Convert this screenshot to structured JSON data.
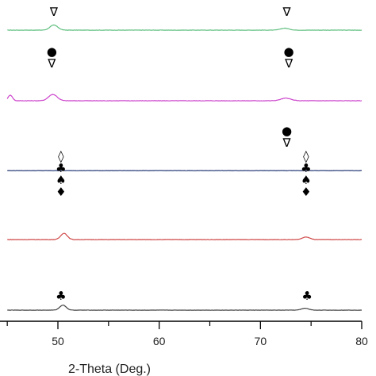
{
  "chart_data": {
    "type": "line",
    "title": "",
    "xlabel": "2-Theta (Deg.)",
    "ylabel": "",
    "xlim": [
      45,
      80
    ],
    "xticks": [
      {
        "value": 50,
        "label": "50"
      },
      {
        "value": 60,
        "label": "60"
      },
      {
        "value": 70,
        "label": "70"
      },
      {
        "value": 80,
        "label": "80"
      }
    ],
    "grid": false,
    "legend": "none",
    "series": [
      {
        "color": "#5fbf7f",
        "baseline": 0.0,
        "noise": 0.25,
        "peaks": [
          {
            "x": 49.6,
            "height": 4.0,
            "width": 0.55
          },
          {
            "x": 72.4,
            "height": 1.5,
            "width": 0.6
          }
        ],
        "markers": [
          {
            "x": 49.6,
            "symbols": [
              "∇"
            ]
          },
          {
            "x": 72.6,
            "symbols": [
              "∇"
            ]
          }
        ]
      },
      {
        "color": "#cc44cc",
        "baseline": 0.0,
        "noise": 0.3,
        "peaks": [
          {
            "x": 45.3,
            "height": 4.5,
            "width": 0.3
          },
          {
            "x": 49.5,
            "height": 5.0,
            "width": 0.6
          },
          {
            "x": 72.5,
            "height": 2.0,
            "width": 0.7
          }
        ],
        "markers": [
          {
            "x": 49.4,
            "symbols": [
              "●",
              "∇"
            ]
          },
          {
            "x": 72.8,
            "symbols": [
              "●",
              "∇"
            ]
          }
        ]
      },
      {
        "color": "#2b3f7a",
        "baseline": 0.0,
        "noise": 0.2,
        "peaks": [],
        "markers": [
          {
            "x": 72.6,
            "symbols": [
              "●",
              "∇"
            ]
          }
        ]
      },
      {
        "color": "#d04848",
        "baseline": 0.0,
        "noise": 0.25,
        "peaks": [
          {
            "x": 50.6,
            "height": 5.0,
            "width": 0.45
          },
          {
            "x": 74.5,
            "height": 2.0,
            "width": 0.5
          }
        ],
        "markers": [
          {
            "x": 50.3,
            "symbols": [
              "◊",
              "♣",
              "♠",
              "♦"
            ]
          },
          {
            "x": 74.5,
            "symbols": [
              "◊",
              "♣",
              "♠",
              "♦"
            ]
          }
        ]
      },
      {
        "color": "#404040",
        "baseline": 0.0,
        "noise": 0.2,
        "peaks": [
          {
            "x": 50.5,
            "height": 4.0,
            "width": 0.45
          },
          {
            "x": 74.4,
            "height": 1.5,
            "width": 0.5
          }
        ],
        "markers": [
          {
            "x": 50.3,
            "symbols": [
              "♣"
            ]
          },
          {
            "x": 74.6,
            "symbols": [
              "♣"
            ]
          }
        ]
      }
    ]
  }
}
